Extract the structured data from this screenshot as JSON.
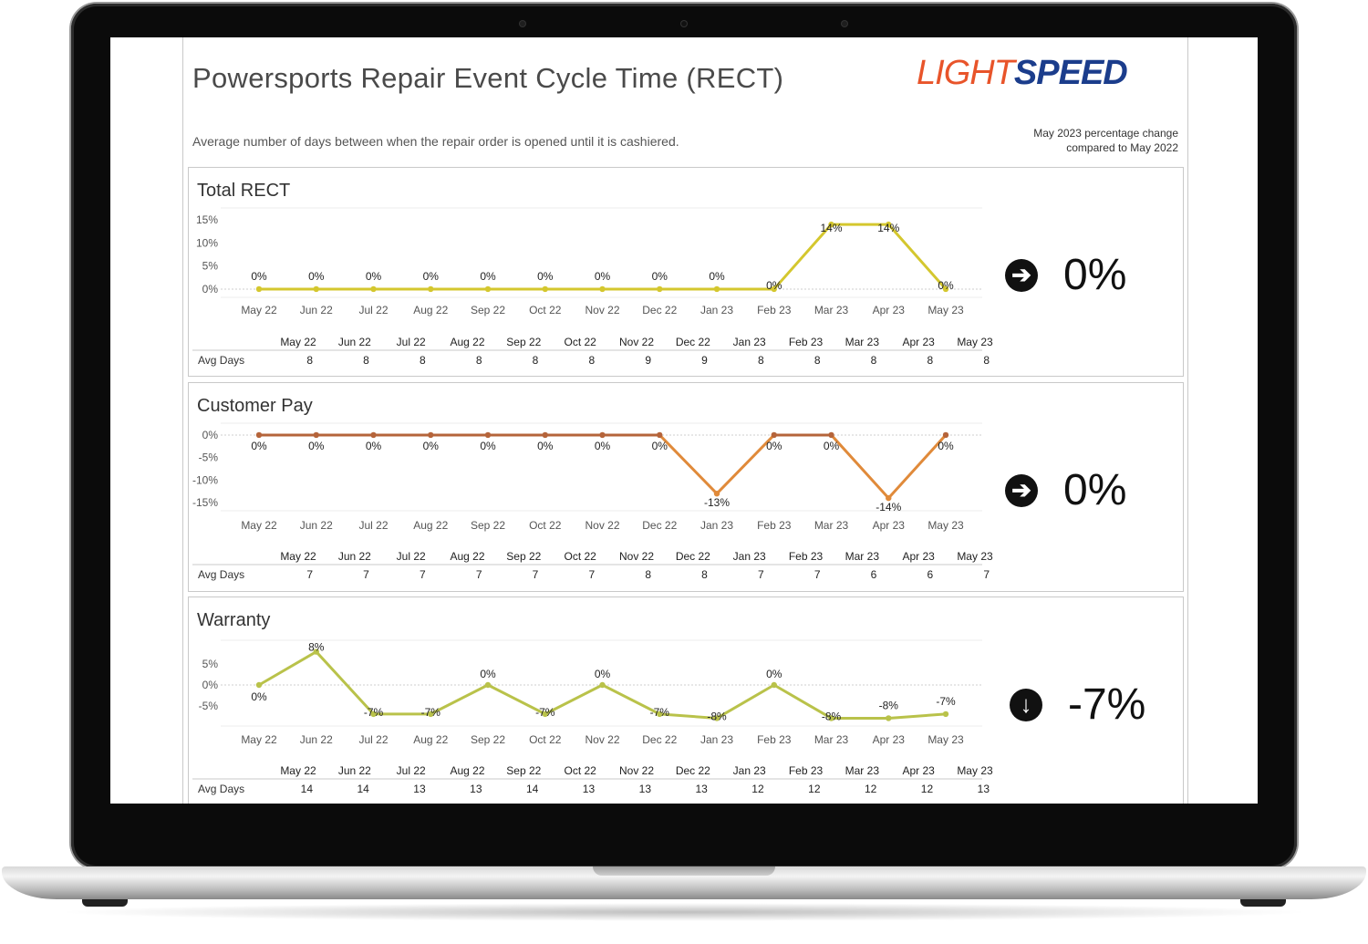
{
  "dashboard": {
    "title": "Powersports Repair Event Cycle Time (RECT)",
    "subtitle": "Average number of days between when the repair order is opened until it is cashiered.",
    "note_line1": "May 2023 percentage change",
    "note_line2": "compared to May 2022",
    "logo_light": "LIGHT",
    "logo_speed": "SPEED",
    "row_label": "Avg Days"
  },
  "colors": {
    "yellow": "#d4c72e",
    "greenish": "#b9c24a",
    "brown": "#b5643a",
    "orange": "#e08a3a"
  },
  "chart_data": [
    {
      "type": "line",
      "title": "Total RECT",
      "categories": [
        "May 22",
        "Jun 22",
        "Jul 22",
        "Aug 22",
        "Sep 22",
        "Oct 22",
        "Nov 22",
        "Dec 22",
        "Jan 23",
        "Feb 23",
        "Mar 23",
        "Apr 23",
        "May 23"
      ],
      "ytick_labels": [
        "15%",
        "10%",
        "5%",
        "0%"
      ],
      "ytick_values": [
        15,
        10,
        5,
        0
      ],
      "ylim": [
        -1,
        16
      ],
      "values": [
        0,
        0,
        0,
        0,
        0,
        0,
        0,
        0,
        0,
        0,
        14,
        14,
        0
      ],
      "data_labels": [
        "0%",
        "0%",
        "0%",
        "0%",
        "0%",
        "0%",
        "0%",
        "0%",
        "0%",
        "0%",
        "14%",
        "14%",
        "0%"
      ],
      "avg_days": [
        8,
        8,
        8,
        8,
        8,
        8,
        9,
        9,
        8,
        8,
        8,
        8,
        8
      ],
      "kpi_value": "0%",
      "kpi_arrow": "right"
    },
    {
      "type": "line",
      "title": "Customer Pay",
      "categories": [
        "May 22",
        "Jun 22",
        "Jul 22",
        "Aug 22",
        "Sep 22",
        "Oct 22",
        "Nov 22",
        "Dec 22",
        "Jan 23",
        "Feb 23",
        "Mar 23",
        "Apr 23",
        "May 23"
      ],
      "ytick_labels": [
        "0%",
        "-5%",
        "-10%",
        "-15%"
      ],
      "ytick_values": [
        0,
        -5,
        -10,
        -15
      ],
      "ylim": [
        -16,
        1
      ],
      "values": [
        0,
        0,
        0,
        0,
        0,
        0,
        0,
        0,
        -13,
        0,
        0,
        -14,
        0
      ],
      "data_labels": [
        "0%",
        "0%",
        "0%",
        "0%",
        "0%",
        "0%",
        "0%",
        "0%",
        "-13%",
        "0%",
        "0%",
        "-14%",
        "0%"
      ],
      "avg_days": [
        7,
        7,
        7,
        7,
        7,
        7,
        8,
        8,
        7,
        7,
        6,
        6,
        7
      ],
      "kpi_value": "0%",
      "kpi_arrow": "right"
    },
    {
      "type": "line",
      "title": "Warranty",
      "categories": [
        "May 22",
        "Jun 22",
        "Jul 22",
        "Aug 22",
        "Sep 22",
        "Oct 22",
        "Nov 22",
        "Dec 22",
        "Jan 23",
        "Feb 23",
        "Mar 23",
        "Apr 23",
        "May 23"
      ],
      "ytick_labels": [
        "5%",
        "0%",
        "-5%"
      ],
      "ytick_values": [
        5,
        0,
        -5
      ],
      "ylim": [
        -9,
        9
      ],
      "values": [
        0,
        8,
        -7,
        -7,
        0,
        -7,
        0,
        -7,
        -8,
        0,
        -8,
        -8,
        -7
      ],
      "data_labels": [
        "0%",
        "8%",
        "-7%",
        "-7%",
        "0%",
        "-7%",
        "0%",
        "-7%",
        "-8%",
        "0%",
        "-8%",
        "-8%",
        "-7%"
      ],
      "avg_days": [
        14,
        14,
        13,
        13,
        14,
        13,
        13,
        13,
        12,
        12,
        12,
        12,
        13
      ],
      "kpi_value": "-7%",
      "kpi_arrow": "down"
    }
  ]
}
